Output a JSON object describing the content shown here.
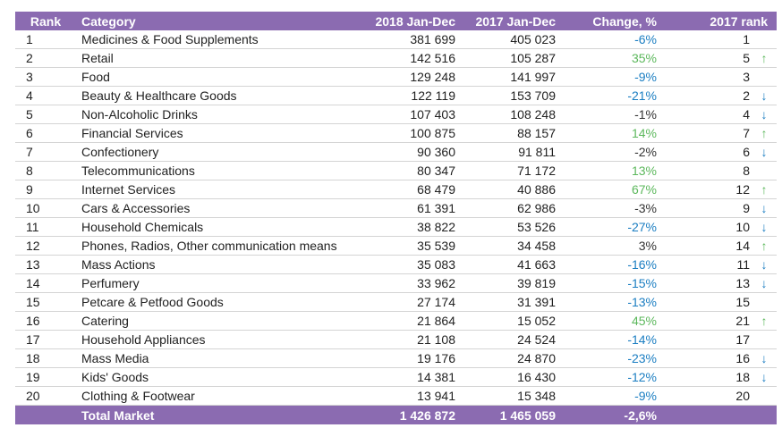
{
  "table": {
    "header": [
      "Rank",
      "Category",
      "2018 Jan-Dec",
      "2017 Jan-Dec",
      "Change, %",
      "2017 rank"
    ],
    "rows": [
      [
        "1",
        "Medicines & Food Supplements",
        "381 699",
        "405 023",
        "-6%",
        "1"
      ],
      [
        "2",
        "Retail",
        "142 516",
        "105 287",
        "35%",
        "5"
      ],
      [
        "3",
        "Food",
        "129 248",
        "141 997",
        "-9%",
        "3"
      ],
      [
        "4",
        "Beauty & Healthcare Goods",
        "122 119",
        "153 709",
        "-21%",
        "2"
      ],
      [
        "5",
        "Non-Alcoholic Drinks",
        "107 403",
        "108 248",
        "-1%",
        "4"
      ],
      [
        "6",
        "Financial Services",
        "100 875",
        "88 157",
        "14%",
        "7"
      ],
      [
        "7",
        "Confectionery",
        "90 360",
        "91 811",
        "-2%",
        "6"
      ],
      [
        "8",
        "Telecommunications",
        "80 347",
        "71 172",
        "13%",
        "8"
      ],
      [
        "9",
        "Internet Services",
        "68 479",
        "40 886",
        "67%",
        "12"
      ],
      [
        "10",
        "Cars & Accessories",
        "61 391",
        "62 986",
        "-3%",
        "9"
      ],
      [
        "11",
        "Household Chemicals",
        "38 822",
        "53 526",
        "-27%",
        "10"
      ],
      [
        "12",
        "Phones, Radios, Other communication means",
        "35 539",
        "34 458",
        "3%",
        "14"
      ],
      [
        "13",
        "Mass Actions",
        "35 083",
        "41 663",
        "-16%",
        "11"
      ],
      [
        "14",
        "Perfumery",
        "33 962",
        "39 819",
        "-15%",
        "13"
      ],
      [
        "15",
        "Petcare & Petfood Goods",
        "27 174",
        "31 391",
        "-13%",
        "15"
      ],
      [
        "16",
        "Catering",
        "21 864",
        "15 052",
        "45%",
        "21"
      ],
      [
        "17",
        "Household Appliances",
        "21 108",
        "24 524",
        "-14%",
        "17"
      ],
      [
        "18",
        "Mass Media",
        "19 176",
        "24 870",
        "-23%",
        "16"
      ],
      [
        "19",
        "Kids' Goods",
        "14 381",
        "16 430",
        "-12%",
        "18"
      ],
      [
        "20",
        "Clothing & Footwear",
        "13 941",
        "15 348",
        "-9%",
        "20"
      ]
    ],
    "total": [
      "Total Market",
      "1 426 872",
      "1 465 059",
      "-2,6%"
    ],
    "colors": {
      "up": "#5cb85c",
      "down": "#1b7ec2",
      "neutral": "#333333"
    }
  }
}
